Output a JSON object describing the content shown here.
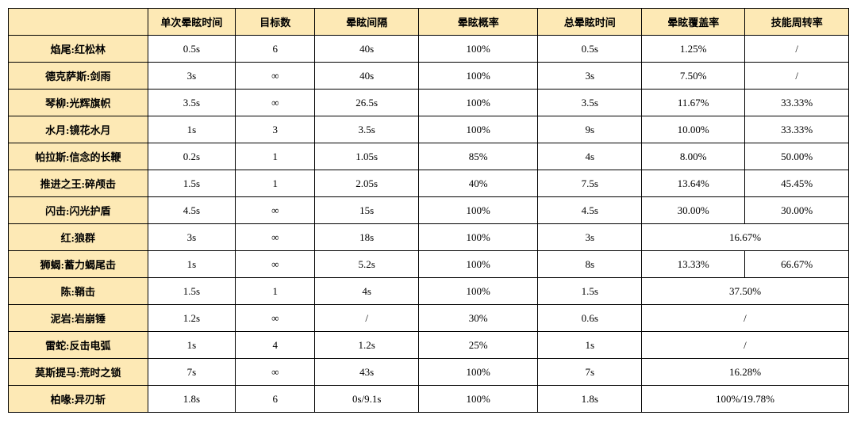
{
  "table": {
    "columns": [
      "",
      "单次晕眩时间",
      "目标数",
      "晕眩间隔",
      "晕眩概率",
      "总晕眩时间",
      "晕眩覆盖率",
      "技能周转率"
    ],
    "header_bg": "#fde9b5",
    "rowhead_bg": "#fde9b5",
    "border_color": "#000000",
    "font_family": "SimSun",
    "font_size_pt": 10,
    "rows": [
      {
        "name": "焰尾:红松林",
        "cells": [
          "0.5s",
          "6",
          "40s",
          "100%",
          "0.5s",
          "1.25%",
          "/"
        ]
      },
      {
        "name": "德克萨斯:剑雨",
        "cells": [
          "3s",
          "∞",
          "40s",
          "100%",
          "3s",
          "7.50%",
          "/"
        ]
      },
      {
        "name": "琴柳:光辉旗帜",
        "cells": [
          "3.5s",
          "∞",
          "26.5s",
          "100%",
          "3.5s",
          "11.67%",
          "33.33%"
        ]
      },
      {
        "name": "水月:镜花水月",
        "cells": [
          "1s",
          "3",
          "3.5s",
          "100%",
          "9s",
          "10.00%",
          "33.33%"
        ]
      },
      {
        "name": "帕拉斯:信念的长鞭",
        "cells": [
          "0.2s",
          "1",
          "1.05s",
          "85%",
          "4s",
          "8.00%",
          "50.00%"
        ]
      },
      {
        "name": "推进之王:碎颅击",
        "cells": [
          "1.5s",
          "1",
          "2.05s",
          "40%",
          "7.5s",
          "13.64%",
          "45.45%"
        ]
      },
      {
        "name": "闪击:闪光护盾",
        "cells": [
          "4.5s",
          "∞",
          "15s",
          "100%",
          "4.5s",
          "30.00%",
          "30.00%"
        ]
      },
      {
        "name": "红:狼群",
        "cells": [
          "3s",
          "∞",
          "18s",
          "100%",
          "3s"
        ],
        "merged_last": "16.67%"
      },
      {
        "name": "狮蝎:蓄力蝎尾击",
        "cells": [
          "1s",
          "∞",
          "5.2s",
          "100%",
          "8s",
          "13.33%",
          "66.67%"
        ]
      },
      {
        "name": "陈:鞘击",
        "cells": [
          "1.5s",
          "1",
          "4s",
          "100%",
          "1.5s"
        ],
        "merged_last": "37.50%"
      },
      {
        "name": "泥岩:岩崩锤",
        "cells": [
          "1.2s",
          "∞",
          "/",
          "30%",
          "0.6s"
        ],
        "merged_last": "/"
      },
      {
        "name": "雷蛇:反击电弧",
        "cells": [
          "1s",
          "4",
          "1.2s",
          "25%",
          "1s"
        ],
        "merged_last": "/"
      },
      {
        "name": "莫斯提马:荒时之锁",
        "cells": [
          "7s",
          "∞",
          "43s",
          "100%",
          "7s"
        ],
        "merged_last": "16.28%"
      },
      {
        "name": "柏喙:异刃斩",
        "cells": [
          "1.8s",
          "6",
          "0s/9.1s",
          "100%",
          "1.8s"
        ],
        "merged_last": "100%/19.78%"
      }
    ]
  }
}
